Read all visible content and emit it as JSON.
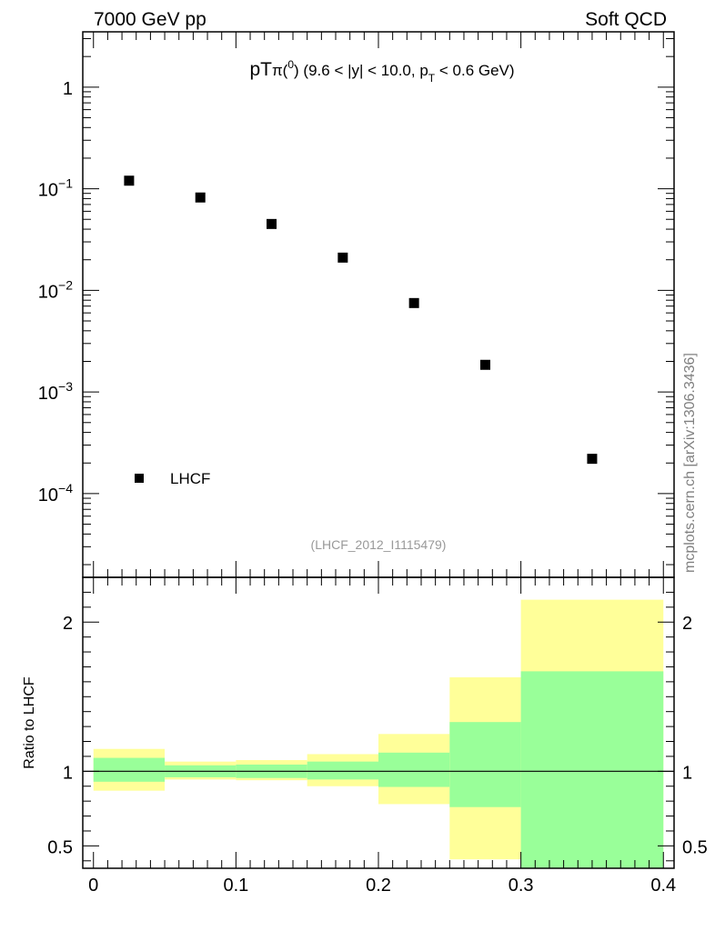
{
  "header": {
    "left": "7000 GeV pp",
    "right": "Soft QCD"
  },
  "side_label": "mcplots.cern.ch [arXiv:1306.3436]",
  "analysis_label": "(LHCF_2012_I1115479)",
  "colors": {
    "data_marker": "#000000",
    "band_outer": "#ffff99",
    "band_inner": "#99ff99",
    "analysis_label": "#999999",
    "side_label": "#808080"
  },
  "chart_data": [
    {
      "type": "scatter",
      "title_parts": {
        "main": "pT",
        "particle": "π",
        "particle_sup": "0",
        "range_a": "(9.6 < |y| < 10.0, p",
        "range_sub": "T",
        "range_b": " < 0.6 GeV)"
      },
      "yscale": "log",
      "xlim": [
        -0.0075,
        0.4075
      ],
      "ylim": [
        1.5e-05,
        3.5
      ],
      "x_ticks": [
        0,
        0.1,
        0.2,
        0.3,
        0.4
      ],
      "y_ticks": [
        {
          "value": 1,
          "base": "1",
          "exp": ""
        },
        {
          "value": 0.1,
          "base": "10",
          "exp": "−1"
        },
        {
          "value": 0.01,
          "base": "10",
          "exp": "−2"
        },
        {
          "value": 0.001,
          "base": "10",
          "exp": "−3"
        },
        {
          "value": 0.0001,
          "base": "10",
          "exp": "−4"
        }
      ],
      "legend": [
        {
          "name": "LHCF",
          "marker": "square"
        }
      ],
      "legend_position": "bottom-left",
      "series": [
        {
          "name": "LHCF",
          "points": [
            {
              "x": 0.025,
              "y": 0.12
            },
            {
              "x": 0.075,
              "y": 0.082
            },
            {
              "x": 0.125,
              "y": 0.045
            },
            {
              "x": 0.175,
              "y": 0.021
            },
            {
              "x": 0.225,
              "y": 0.0075
            },
            {
              "x": 0.275,
              "y": 0.00185
            },
            {
              "x": 0.35,
              "y": 0.00022
            }
          ]
        }
      ]
    },
    {
      "type": "area",
      "ylabel": "Ratio to LHCF",
      "xlim": [
        -0.0075,
        0.4075
      ],
      "ylim": [
        0.35,
        2.3
      ],
      "x_ticks": [
        {
          "value": 0,
          "label": "0"
        },
        {
          "value": 0.1,
          "label": "0.1"
        },
        {
          "value": 0.2,
          "label": "0.2"
        },
        {
          "value": 0.3,
          "label": "0.3"
        },
        {
          "value": 0.4,
          "label": "0.4"
        }
      ],
      "y_ticks": [
        {
          "value": 0.5,
          "label": "0.5"
        },
        {
          "value": 1,
          "label": "1"
        },
        {
          "value": 2,
          "label": "2"
        }
      ],
      "reference_line": 1,
      "bins": [
        {
          "x0": 0.0,
          "x1": 0.05,
          "outer": [
            0.87,
            1.15
          ],
          "inner": [
            0.93,
            1.09
          ]
        },
        {
          "x0": 0.05,
          "x1": 0.1,
          "outer": [
            0.945,
            1.065
          ],
          "inner": [
            0.96,
            1.04
          ]
        },
        {
          "x0": 0.1,
          "x1": 0.15,
          "outer": [
            0.94,
            1.075
          ],
          "inner": [
            0.955,
            1.045
          ]
        },
        {
          "x0": 0.15,
          "x1": 0.2,
          "outer": [
            0.9,
            1.115
          ],
          "inner": [
            0.945,
            1.065
          ]
        },
        {
          "x0": 0.2,
          "x1": 0.25,
          "outer": [
            0.78,
            1.25
          ],
          "inner": [
            0.895,
            1.125
          ]
        },
        {
          "x0": 0.25,
          "x1": 0.3,
          "outer": [
            0.41,
            1.63
          ],
          "inner": [
            0.76,
            1.33
          ]
        },
        {
          "x0": 0.3,
          "x1": 0.4,
          "outer": [
            0.35,
            2.15
          ],
          "inner": [
            0.35,
            1.67
          ]
        }
      ]
    }
  ]
}
